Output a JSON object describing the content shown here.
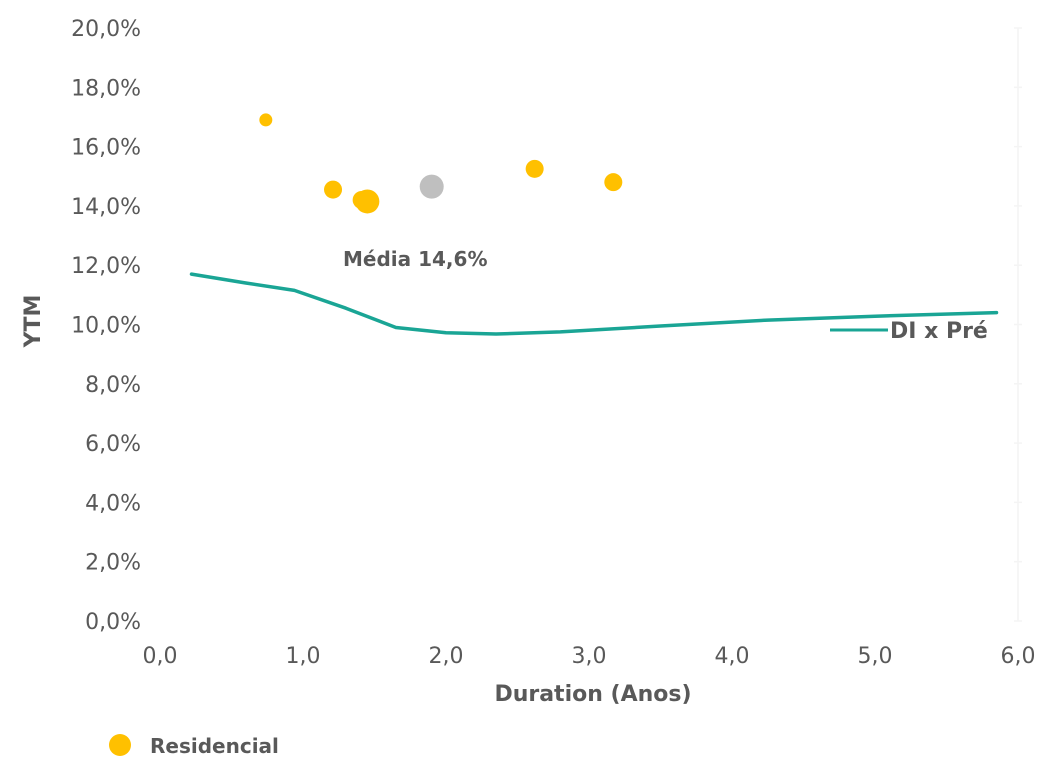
{
  "chart_data": {
    "type": "scatter",
    "xlabel": "Duration (Anos)",
    "ylabel": "YTM",
    "xlim": [
      0,
      6
    ],
    "ylim": [
      0,
      20
    ],
    "x_ticks": [
      "0,0",
      "1,0",
      "2,0",
      "3,0",
      "4,0",
      "5,0",
      "6,0"
    ],
    "y_ticks": [
      "0,0%",
      "2,0%",
      "4,0%",
      "6,0%",
      "8,0%",
      "10,0%",
      "12,0%",
      "14,0%",
      "16,0%",
      "18,0%",
      "20,0%"
    ],
    "grid": false,
    "legend": {
      "position": "bottom-left",
      "entries": [
        "Residencial"
      ]
    },
    "series": [
      {
        "name": "Residencial",
        "kind": "scatter",
        "color": "#FFC000",
        "points": [
          {
            "x": 0.74,
            "y": 16.9,
            "size": "small"
          },
          {
            "x": 1.21,
            "y": 14.55,
            "size": "medium"
          },
          {
            "x": 1.41,
            "y": 14.2,
            "size": "medium"
          },
          {
            "x": 1.45,
            "y": 14.15,
            "size": "large"
          },
          {
            "x": 2.62,
            "y": 15.25,
            "size": "medium"
          },
          {
            "x": 3.17,
            "y": 14.8,
            "size": "medium"
          }
        ]
      },
      {
        "name": "Média",
        "kind": "scatter",
        "color": "#BFBFBF",
        "points": [
          {
            "x": 1.9,
            "y": 14.65,
            "size": "large"
          }
        ]
      },
      {
        "name": "DI x Pré",
        "kind": "line",
        "color": "#1AA595",
        "points": [
          {
            "x": 0.22,
            "y": 11.7
          },
          {
            "x": 0.6,
            "y": 11.4
          },
          {
            "x": 0.94,
            "y": 11.15
          },
          {
            "x": 1.3,
            "y": 10.55
          },
          {
            "x": 1.65,
            "y": 9.9
          },
          {
            "x": 2.0,
            "y": 9.72
          },
          {
            "x": 2.35,
            "y": 9.68
          },
          {
            "x": 2.8,
            "y": 9.75
          },
          {
            "x": 3.5,
            "y": 9.95
          },
          {
            "x": 4.25,
            "y": 10.15
          },
          {
            "x": 5.0,
            "y": 10.28
          },
          {
            "x": 5.85,
            "y": 10.4
          }
        ]
      }
    ],
    "annotations": [
      {
        "text": "Média 14,6%"
      },
      {
        "text": "DI x Pré"
      }
    ]
  }
}
